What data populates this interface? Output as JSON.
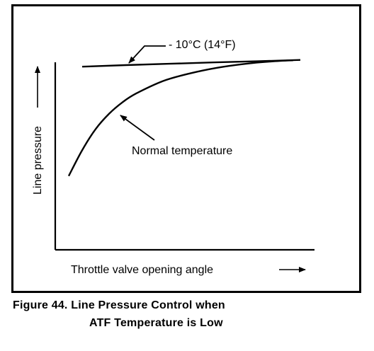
{
  "chart_data": {
    "type": "line",
    "xlabel": "Throttle valve opening angle",
    "ylabel": "Line pressure",
    "xlim": [
      0,
      100
    ],
    "ylim": [
      0,
      100
    ],
    "grid": false,
    "series": [
      {
        "name": "- 10°C (14°F)",
        "x": [
          0,
          20,
          40,
          60,
          80,
          100
        ],
        "y": [
          95.5,
          96.3,
          97.0,
          97.7,
          98.3,
          99.0
        ]
      },
      {
        "name": "Normal temperature",
        "x": [
          5.5,
          11.0,
          16.5,
          22.0,
          27.5,
          33.0,
          44.0,
          55.0,
          66.0,
          77.0,
          88.0,
          97.0
        ],
        "y": [
          38.5,
          52.0,
          63.0,
          71.0,
          77.0,
          81.5,
          88.0,
          92.0,
          94.9,
          96.9,
          98.2,
          98.8
        ]
      }
    ],
    "annotations": [
      {
        "text": "- 10°C (14°F)",
        "target_series": 0
      },
      {
        "text": "Normal temperature",
        "target_series": 1
      }
    ]
  },
  "caption": {
    "line1": "Figure 44. Line Pressure Control when",
    "line2": "ATF Temperature is Low"
  }
}
